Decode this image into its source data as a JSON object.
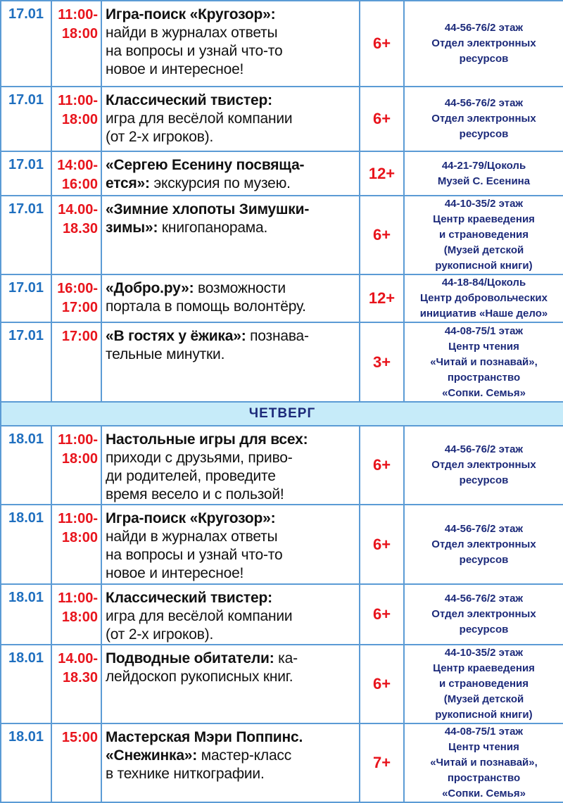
{
  "colors": {
    "border": "#5b9bd5",
    "date": "#1f6fbf",
    "time": "#e8141c",
    "age": "#e8141c",
    "location": "#1c2a7a",
    "day_header_bg": "#c6ebf9"
  },
  "rows": [
    {
      "date": "17.01",
      "time": "11:00-\n18:00",
      "bold": "Игра-поиск «Кругозор»:",
      "rest": "\nнайди в журналах ответы\nна вопросы и узнай что-то\nновое и интересное!",
      "age": "6+",
      "location": "44-56-76/2 этаж\nОтдел электронных\nресурсов"
    },
    {
      "date": "17.01",
      "time": "11:00-\n18:00",
      "bold": "Классический твистер:",
      "rest": "\nигра для весёлой компании\n(от 2-х игроков).",
      "age": "6+",
      "location": "44-56-76/2 этаж\nОтдел электронных\nресурсов"
    },
    {
      "date": "17.01",
      "time": "14:00-\n16:00",
      "bold": "«Сергею Есенину посвяща-\nется»:",
      "rest": " экскурсия по музею.",
      "age": "12+",
      "location": "44-21-79/Цоколь\nМузей С. Есенина"
    },
    {
      "date": "17.01",
      "time": "14.00-\n18.30",
      "bold": "«Зимние хлопоты Зимушки-\nзимы»:",
      "rest": " книгопанорама.",
      "age": "6+",
      "location": "44-10-35/2 этаж\nЦентр краеведения\nи страноведения\n(Музей детской\nрукописной книги)"
    },
    {
      "date": "17.01",
      "time": "16:00-\n17:00",
      "bold": "«Добро.ру»:",
      "rest": " возможности\nпортала в помощь волонтёру.",
      "age": "12+",
      "location": "44-18-84/Цоколь\nЦентр добровольческих\nинициатив «Наше дело»"
    },
    {
      "date": "17.01",
      "time": "17:00",
      "bold": "«В гостях у ёжика»:",
      "rest": " познава-\nтельные минутки.",
      "age": "3+",
      "location": "44-08-75/1 этаж\nЦентр чтения\n«Читай и познавай»,\nпространство\n«Сопки. Семья»"
    }
  ],
  "day_header": "ЧЕТВЕРГ",
  "rows2": [
    {
      "date": "18.01",
      "time": "11:00-\n18:00",
      "bold": "Настольные игры для всех:",
      "rest": "\nприходи с друзьями, приво-\nди родителей, проведите\nвремя весело и с пользой!",
      "age": "6+",
      "location": "44-56-76/2 этаж\nОтдел электронных\nресурсов"
    },
    {
      "date": "18.01",
      "time": "11:00-\n18:00",
      "bold": "Игра-поиск «Кругозор»:",
      "rest": "\nнайди в журналах ответы\nна вопросы и узнай что-то\nновое и интересное!",
      "age": "6+",
      "location": "44-56-76/2 этаж\nОтдел электронных\nресурсов"
    },
    {
      "date": "18.01",
      "time": "11:00-\n18:00",
      "bold": "Классический твистер:",
      "rest": "\nигра для весёлой компании\n(от 2-х игроков).",
      "age": "6+",
      "location": "44-56-76/2 этаж\nОтдел электронных\nресурсов"
    },
    {
      "date": "18.01",
      "time": "14.00-\n18.30",
      "bold": "Подводные обитатели:",
      "rest": " ка-\nлейдоскоп рукописных книг.",
      "age": "6+",
      "location": "44-10-35/2 этаж\nЦентр краеведения\nи страноведения\n(Музей детской\nрукописной книги)"
    },
    {
      "date": "18.01",
      "time": "15:00",
      "bold": "Мастерская Мэри Поппинс.\n«Снежинка»:",
      "rest": " мастер-класс\nв технике ниткографии.",
      "age": "7+",
      "location": "44-08-75/1 этаж\nЦентр чтения\n«Читай и познавай»,\nпространство\n«Сопки. Семья»"
    }
  ]
}
